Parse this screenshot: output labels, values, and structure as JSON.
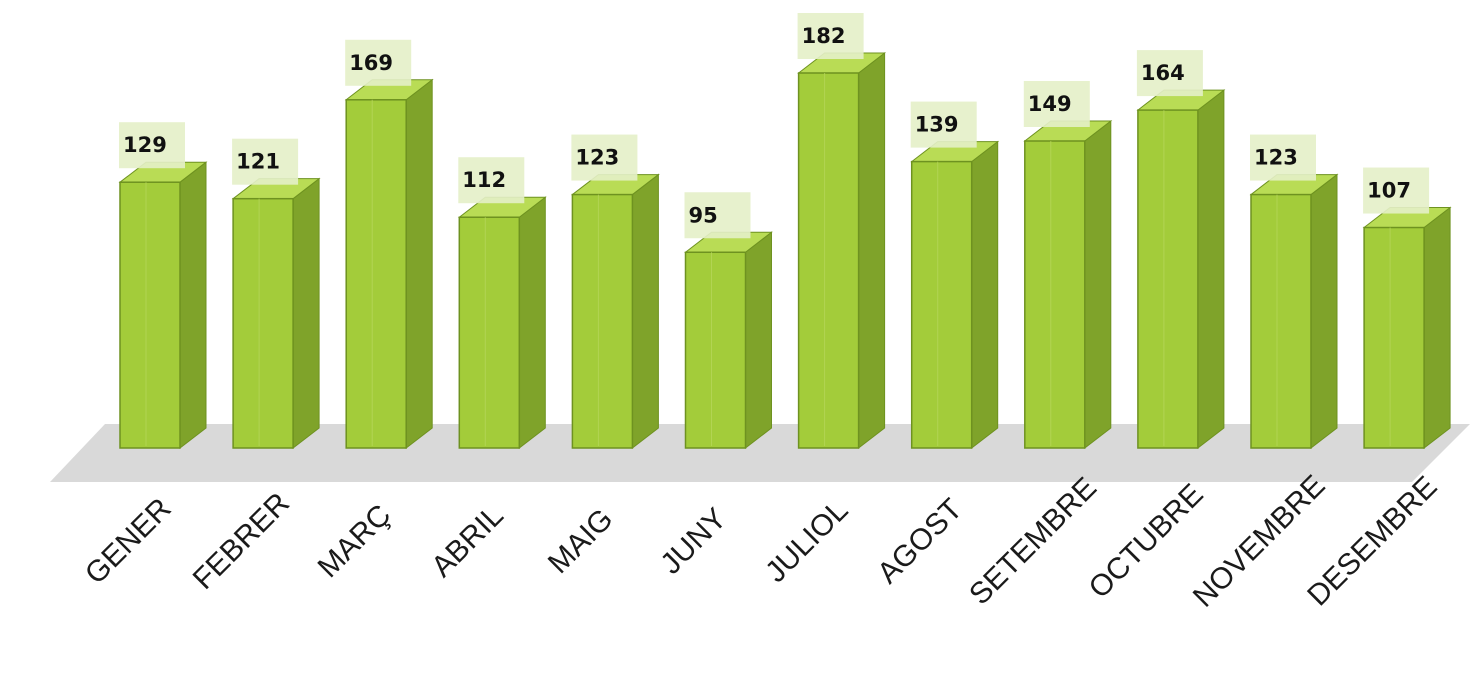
{
  "chart_data": {
    "type": "bar",
    "title": "",
    "xlabel": "",
    "ylabel": "",
    "categories": [
      "GENER",
      "FEBRER",
      "MARÇ",
      "ABRIL",
      "MAIG",
      "JUNY",
      "JULIOL",
      "AGOST",
      "SETEMBRE",
      "OCTUBRE",
      "NOVEMBRE",
      "DESEMBRE"
    ],
    "values": [
      129,
      121,
      169,
      112,
      123,
      95,
      182,
      139,
      149,
      164,
      123,
      107
    ],
    "ylim": [
      0,
      182
    ],
    "grid": false,
    "legend": "none",
    "style": "3d",
    "colors": {
      "bar_front": "#a3cc3a",
      "bar_side": "#7fa32a",
      "bar_top": "#b9dc55",
      "bar_edge": "#6e9220",
      "floor": "#d9d9d9",
      "label_box": "#e4efc8"
    }
  }
}
